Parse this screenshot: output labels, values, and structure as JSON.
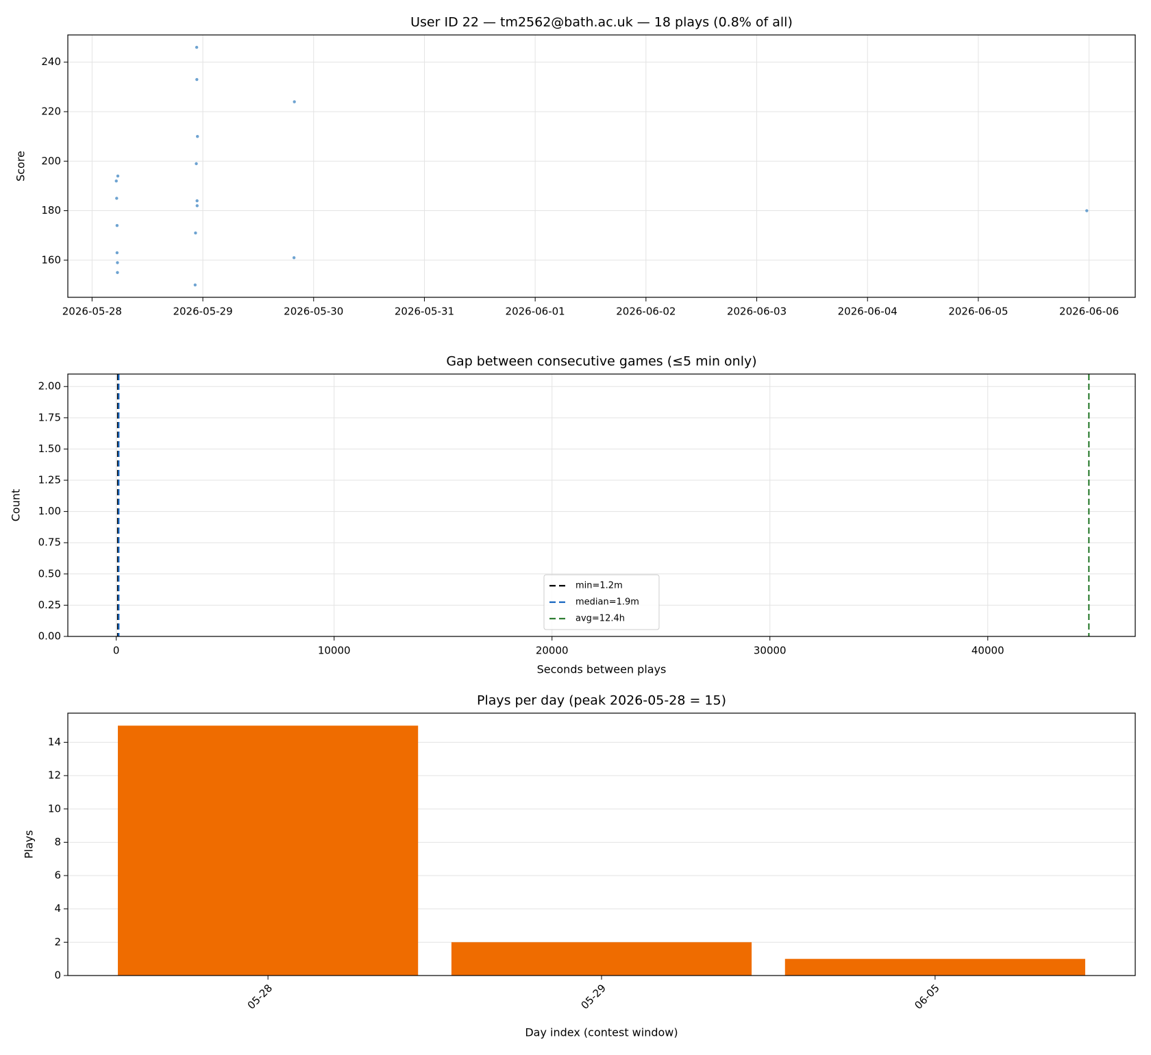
{
  "chart_data": [
    {
      "type": "scatter",
      "title": "User ID 22 — tm2562@bath.ac.uk — 18 plays (0.8% of all)",
      "ylabel": "Score",
      "x": [
        "2026-05-28 05:15",
        "2026-05-28 05:20",
        "2026-05-28 05:25",
        "2026-05-28 05:25",
        "2026-05-28 05:30",
        "2026-05-28 05:30",
        "2026-05-28 05:35",
        "2026-05-28 22:20",
        "2026-05-28 22:25",
        "2026-05-28 22:35",
        "2026-05-28 22:40",
        "2026-05-28 22:42",
        "2026-05-28 22:45",
        "2026-05-28 22:46",
        "2026-05-28 22:50",
        "2026-05-29 19:45",
        "2026-05-29 19:50",
        "2026-06-05 23:30"
      ],
      "values": [
        192,
        185,
        174,
        163,
        159,
        155,
        194,
        150,
        171,
        199,
        246,
        233,
        184,
        182,
        210,
        161,
        224,
        180
      ],
      "color": "#4a8cc6",
      "xlim": [
        "2026-05-27 18:45",
        "2026-06-06 10:00"
      ],
      "xticks": [
        "2026-05-28",
        "2026-05-29",
        "2026-05-30",
        "2026-05-31",
        "2026-06-01",
        "2026-06-02",
        "2026-06-03",
        "2026-06-04",
        "2026-06-05",
        "2026-06-06"
      ],
      "ylim": [
        145,
        251
      ],
      "yticks": [
        160,
        180,
        200,
        220,
        240
      ],
      "grid": "both"
    },
    {
      "type": "reference-lines",
      "title": "Gap between consecutive games (≤5 min only)",
      "xlabel": "Seconds between plays",
      "ylabel": "Count",
      "vlines": [
        {
          "name": "min=1.2m",
          "value": 72,
          "color": "#000000"
        },
        {
          "name": "median=1.9m",
          "value": 114,
          "color": "#1565c0"
        },
        {
          "name": "avg=12.4h",
          "value": 44640,
          "color": "#2e7d32"
        }
      ],
      "line_style": "dashed",
      "xlim": [
        -2222,
        46768
      ],
      "xticks": [
        0,
        10000,
        20000,
        30000,
        40000
      ],
      "ylim": [
        0,
        2.1
      ],
      "yticks": [
        {
          "value": 0,
          "label": "0.00"
        },
        {
          "value": 0.25,
          "label": "0.25"
        },
        {
          "value": 0.5,
          "label": "0.50"
        },
        {
          "value": 0.75,
          "label": "0.75"
        },
        {
          "value": 1,
          "label": "1.00"
        },
        {
          "value": 1.25,
          "label": "1.25"
        },
        {
          "value": 1.5,
          "label": "1.50"
        },
        {
          "value": 1.75,
          "label": "1.75"
        },
        {
          "value": 2,
          "label": "2.00"
        }
      ],
      "grid": "both",
      "legend": "lower center"
    },
    {
      "type": "bar",
      "title": "Plays per day (peak 2026-05-28 = 15)",
      "xlabel": "Day index (contest window)",
      "ylabel": "Plays",
      "categories": [
        "05-28",
        "05-29",
        "06-05"
      ],
      "values": [
        15,
        2,
        1
      ],
      "color": "#ef6c00",
      "ylim": [
        0,
        15.75
      ],
      "yticks": [
        0,
        2,
        4,
        6,
        8,
        10,
        12,
        14
      ],
      "grid": "y"
    }
  ]
}
